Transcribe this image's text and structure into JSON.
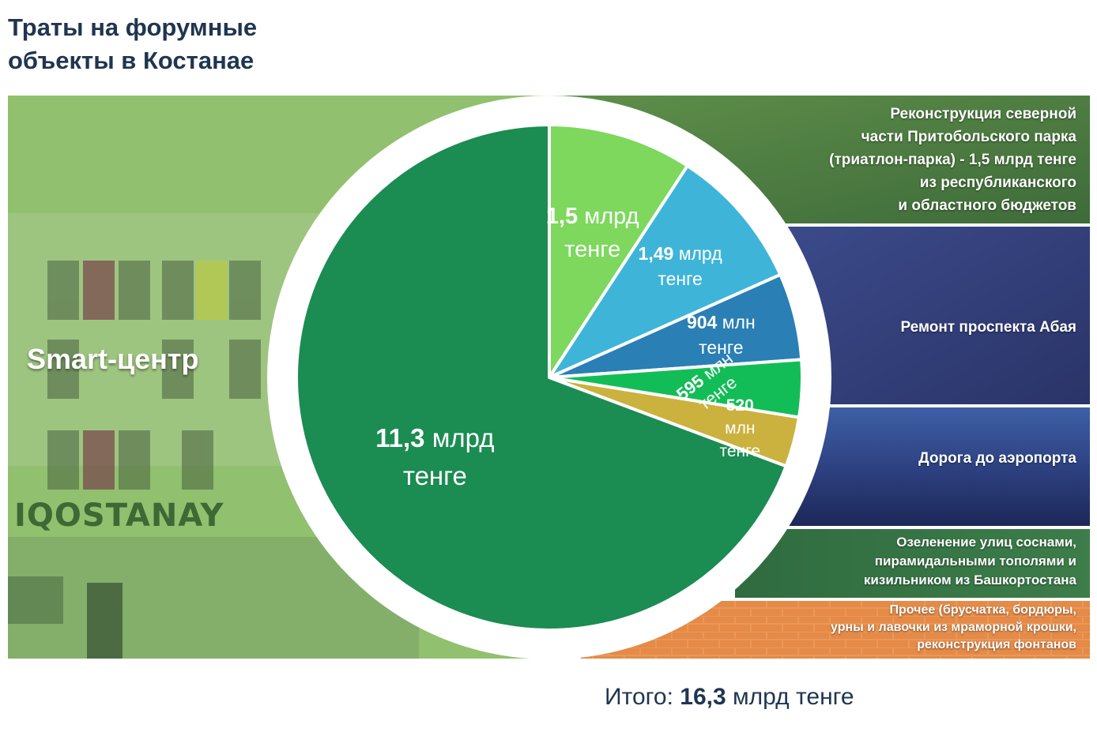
{
  "title_lines": [
    "Траты на форумные",
    "объекты в Костанае"
  ],
  "background_labels": {
    "smart_center": "Smart-центр",
    "sign": "IQOSTANAY"
  },
  "categories": [
    {
      "label_lines": [
        "Реконструкция северной",
        "части Притобольского парка",
        "(триатлон-парка) - 1,5 млрд тенге",
        "из  республиканского",
        "и областного бюджетов"
      ],
      "value_strong": "1,5",
      "value_rest": "млрд",
      "value_line2": "тенге",
      "color": "#7dd85d"
    },
    {
      "label_lines": [
        "Ремонт проспекта Абая"
      ],
      "value_strong": "1,49",
      "value_rest": "млрд",
      "value_line2": "тенге",
      "color": "#3eb5d8"
    },
    {
      "label_lines": [
        "Дорога до аэропорта"
      ],
      "value_strong": "904",
      "value_rest": "млн",
      "value_line2": "тенге",
      "color": "#2a7fb5"
    },
    {
      "label_lines": [
        "Озеленение улиц соснами,",
        "пирамидальными тополями и",
        "кизильником из Башкортостана"
      ],
      "value_strong": "595",
      "value_rest": "млн",
      "value_line2": "тенге",
      "color": "#12bd57"
    },
    {
      "label_lines": [
        "Прочее (брусчатка, бордюры,",
        "урны и лавочки из мраморной крошки,",
        "реконструкция фонтанов"
      ],
      "value_strong": "520",
      "value_rest": "млн",
      "value_line2": "тенге",
      "color": "#cbb13e"
    },
    {
      "label_lines": [
        "Smart-центр"
      ],
      "value_strong": "11,3",
      "value_rest": "млрд",
      "value_line2": "тенге",
      "color": "#1b8c52"
    }
  ],
  "total": {
    "prefix": "Итого:",
    "value": "16,3",
    "unit": "млрд тенге"
  },
  "chart_data": {
    "type": "pie",
    "title": "Траты на форумные объекты в Костанае",
    "unit": "млрд тенге",
    "categories": [
      "Реконструкция северной части Притобольского парка",
      "Ремонт проспекта Абая",
      "Дорога до аэропорта",
      "Озеленение улиц соснами, пирамидальными тополями и кизильником из Башкортостана",
      "Прочее",
      "Smart-центр"
    ],
    "values": [
      1.5,
      1.49,
      0.904,
      0.595,
      0.52,
      11.3
    ],
    "total": 16.3,
    "colors": [
      "#7dd85d",
      "#3eb5d8",
      "#2a7fb5",
      "#12bd57",
      "#cbb13e",
      "#1b8c52"
    ]
  }
}
